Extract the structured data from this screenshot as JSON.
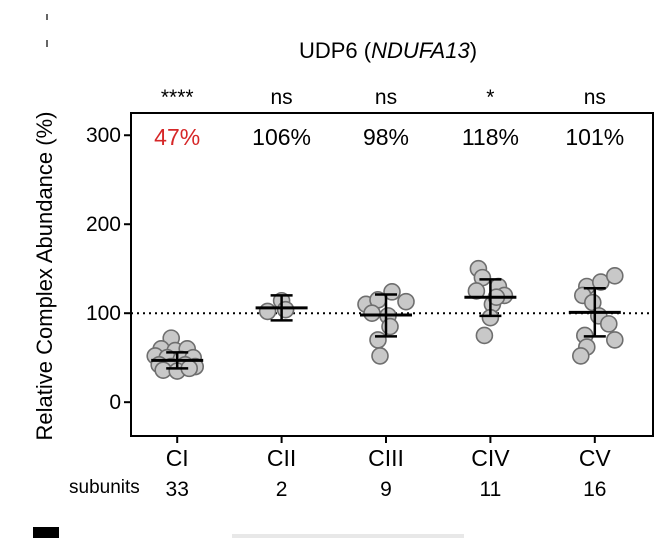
{
  "chart_data": {
    "type": "scatter",
    "title_prefix": "UDP6 (",
    "title_gene": "NDUFA13",
    "title_suffix": ")",
    "ylabel": "Relative Complex Abundance (%)",
    "ylim": [
      -38,
      325
    ],
    "yticks": [
      0,
      100,
      200,
      300
    ],
    "reference_line": 100,
    "subunits_label": "subunits",
    "categories": [
      "CI",
      "CII",
      "CIII",
      "CIV",
      "CV"
    ],
    "significance": [
      "****",
      "ns",
      "ns",
      "*",
      "ns"
    ],
    "percent_labels": [
      "47%",
      "106%",
      "98%",
      "118%",
      "101%"
    ],
    "percent_colors": [
      "#d62728",
      "#000000",
      "#000000",
      "#000000",
      "#000000"
    ],
    "subunit_counts": [
      "33",
      "2",
      "9",
      "11",
      "16"
    ],
    "mean": [
      47,
      106,
      98,
      118,
      101
    ],
    "err_low": [
      38,
      92,
      74,
      97,
      74
    ],
    "err_high": [
      56,
      120,
      121,
      138,
      128
    ],
    "points": [
      [
        [
          -6,
          72
        ],
        [
          -16,
          60
        ],
        [
          -2,
          58
        ],
        [
          10,
          60
        ],
        [
          -22,
          52
        ],
        [
          -10,
          50
        ],
        [
          4,
          48
        ],
        [
          16,
          50
        ],
        [
          -18,
          42
        ],
        [
          -6,
          40
        ],
        [
          8,
          42
        ],
        [
          18,
          40
        ],
        [
          -14,
          36
        ],
        [
          0,
          35
        ],
        [
          12,
          38
        ]
      ],
      [
        [
          -14,
          102
        ],
        [
          0,
          114
        ],
        [
          4,
          104
        ]
      ],
      [
        [
          -20,
          110
        ],
        [
          -8,
          115
        ],
        [
          6,
          124
        ],
        [
          20,
          113
        ],
        [
          -14,
          100
        ],
        [
          2,
          97
        ],
        [
          -8,
          70
        ],
        [
          -6,
          52
        ],
        [
          4,
          85
        ]
      ],
      [
        [
          -12,
          150
        ],
        [
          -8,
          140
        ],
        [
          8,
          130
        ],
        [
          14,
          120
        ],
        [
          -14,
          125
        ],
        [
          2,
          110
        ],
        [
          0,
          95
        ],
        [
          -6,
          75
        ],
        [
          6,
          118
        ]
      ],
      [
        [
          -8,
          130
        ],
        [
          6,
          135
        ],
        [
          20,
          142
        ],
        [
          -12,
          120
        ],
        [
          -2,
          112
        ],
        [
          4,
          97
        ],
        [
          14,
          88
        ],
        [
          -10,
          75
        ],
        [
          20,
          70
        ],
        [
          -8,
          62
        ],
        [
          -14,
          52
        ]
      ]
    ]
  }
}
